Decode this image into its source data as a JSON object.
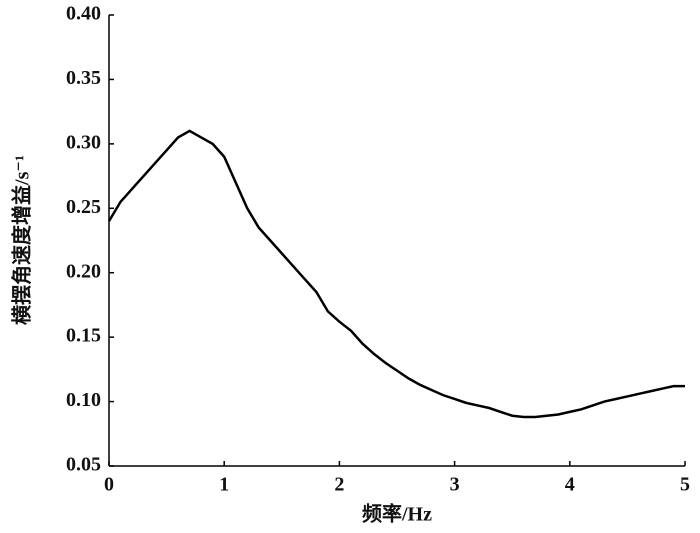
{
  "chart_data": {
    "type": "line",
    "xlabel": "频率/Hz",
    "ylabel": "横摆角速度增益/s⁻¹",
    "x": [
      0,
      0.1,
      0.2,
      0.3,
      0.4,
      0.5,
      0.6,
      0.7,
      0.8,
      0.9,
      1.0,
      1.1,
      1.2,
      1.3,
      1.4,
      1.5,
      1.6,
      1.7,
      1.8,
      1.9,
      2.0,
      2.1,
      2.2,
      2.3,
      2.4,
      2.5,
      2.6,
      2.7,
      2.8,
      2.9,
      3.0,
      3.1,
      3.2,
      3.3,
      3.4,
      3.5,
      3.6,
      3.7,
      3.8,
      3.9,
      4.0,
      4.1,
      4.2,
      4.3,
      4.4,
      4.5,
      4.6,
      4.7,
      4.8,
      4.9,
      5.0
    ],
    "series": [
      {
        "color": "#000000",
        "values": [
          0.24,
          0.255,
          0.265,
          0.275,
          0.285,
          0.295,
          0.305,
          0.31,
          0.305,
          0.3,
          0.29,
          0.27,
          0.25,
          0.235,
          0.225,
          0.215,
          0.205,
          0.195,
          0.185,
          0.17,
          0.162,
          0.155,
          0.145,
          0.137,
          0.13,
          0.124,
          0.118,
          0.113,
          0.109,
          0.105,
          0.102,
          0.099,
          0.097,
          0.095,
          0.092,
          0.089,
          0.088,
          0.088,
          0.089,
          0.09,
          0.092,
          0.094,
          0.097,
          0.1,
          0.102,
          0.104,
          0.106,
          0.108,
          0.11,
          0.112,
          0.112
        ]
      }
    ],
    "xlim": [
      0,
      5
    ],
    "xticks": [
      0,
      1,
      2,
      3,
      4,
      5
    ],
    "ylim": [
      0.05,
      0.4
    ],
    "yticks": [
      0.05,
      {
        "value": 0.1,
        "label": "0.10"
      },
      0.15,
      {
        "value": 0.2,
        "label": "0.20"
      },
      0.25,
      {
        "value": 0.3,
        "label": "0.30"
      },
      0.35,
      {
        "value": 0.4,
        "label": "0.40"
      }
    ]
  }
}
